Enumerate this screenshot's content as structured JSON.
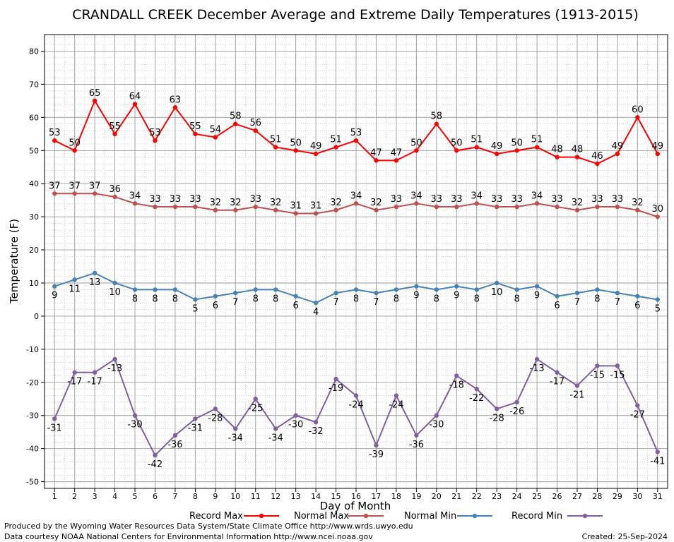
{
  "chart_data": {
    "type": "line",
    "title": "CRANDALL CREEK December Average and Extreme Daily Temperatures (1913-2015)",
    "xlabel": "Day of Month",
    "ylabel": "Temperature (F)",
    "xlim": [
      0.5,
      31.5
    ],
    "ylim": [
      -52,
      85
    ],
    "y_ticks": [
      -50,
      -40,
      -30,
      -20,
      -10,
      0,
      10,
      20,
      30,
      40,
      50,
      60,
      70,
      80
    ],
    "x": [
      1,
      2,
      3,
      4,
      5,
      6,
      7,
      8,
      9,
      10,
      11,
      12,
      13,
      14,
      15,
      16,
      17,
      18,
      19,
      20,
      21,
      22,
      23,
      24,
      25,
      26,
      27,
      28,
      29,
      30,
      31
    ],
    "grid": true,
    "legend_position": "bottom",
    "series": [
      {
        "name": "Record Max",
        "color": "#ff0000",
        "values": [
          53,
          50,
          65,
          55,
          64,
          53,
          63,
          55,
          54,
          58,
          56,
          51,
          50,
          49,
          51,
          53,
          47,
          47,
          50,
          58,
          50,
          51,
          49,
          50,
          51,
          48,
          48,
          46,
          49,
          60,
          49
        ]
      },
      {
        "name": "Normal Max",
        "color": "#c0504d",
        "values": [
          37,
          37,
          37,
          36,
          34,
          33,
          33,
          33,
          32,
          32,
          33,
          32,
          31,
          31,
          32,
          34,
          32,
          33,
          34,
          33,
          33,
          34,
          33,
          33,
          34,
          33,
          32,
          33,
          33,
          32,
          30
        ]
      },
      {
        "name": "Normal Min",
        "color": "#4682b4",
        "values": [
          9,
          11,
          13,
          10,
          8,
          8,
          8,
          5,
          6,
          7,
          8,
          8,
          6,
          4,
          7,
          8,
          7,
          8,
          9,
          8,
          9,
          8,
          10,
          8,
          9,
          6,
          7,
          8,
          7,
          6,
          5
        ]
      },
      {
        "name": "Record Min",
        "color": "#7e5fa0",
        "values": [
          -31,
          -17,
          -17,
          -13,
          -30,
          -42,
          -36,
          -31,
          -28,
          -34,
          -25,
          -34,
          -30,
          -32,
          -19,
          -24,
          -39,
          -24,
          -36,
          -30,
          -18,
          -22,
          -28,
          -26,
          -13,
          -17,
          -21,
          -15,
          -15,
          -27,
          -41
        ]
      }
    ]
  },
  "footer": {
    "line1": "Produced by the Wyoming Water Resources Data System/State Climate Office http://www.wrds.uwyo.edu",
    "line2": "Data courtesy NOAA National Centers for Environmental Information http://www.ncei.noaa.gov",
    "created": "Created:  25-Sep-2024"
  }
}
